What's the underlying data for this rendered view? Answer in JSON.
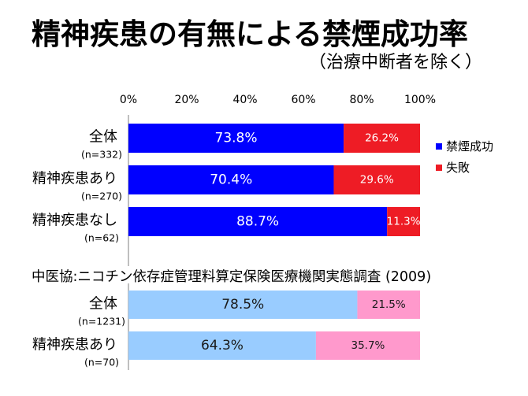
{
  "header": {
    "title": "精神疾患の有無による禁煙成功率",
    "subtitle": "（治療中断者を除く）"
  },
  "chart_data": [
    {
      "type": "bar",
      "orientation": "horizontal",
      "stacked": true,
      "categories": [
        "全体",
        "精神疾患あり",
        "精神疾患なし"
      ],
      "category_notes": [
        "(n=332)",
        "(n=270)",
        "(n=62)"
      ],
      "series": [
        {
          "name": "禁煙成功",
          "values": [
            73.8,
            70.4,
            88.7
          ],
          "labels": [
            "73.8%",
            "70.4%",
            "88.7%"
          ],
          "color": "#0000ff",
          "label_color": "#ffffff"
        },
        {
          "name": "失敗",
          "values": [
            26.2,
            29.6,
            11.3
          ],
          "labels": [
            "26.2%",
            "29.6%",
            "11.3%"
          ],
          "color": "#ee1c25",
          "label_color": "#ffffff"
        }
      ],
      "xlim": [
        0,
        100
      ],
      "xticks": [
        0,
        20,
        40,
        60,
        80,
        100
      ],
      "xtick_labels": [
        "0%",
        "20%",
        "40%",
        "60%",
        "80%",
        "100%"
      ],
      "xtick_position": "top",
      "grid": false,
      "legend": "right"
    },
    {
      "type": "bar",
      "orientation": "horizontal",
      "stacked": true,
      "caption": "中医協:ニコチン依存症管理料算定保険医療機関実態調査 (2009)",
      "categories": [
        "全体",
        "精神疾患あり"
      ],
      "category_notes": [
        "(n=1231)",
        "(n=70)"
      ],
      "series": [
        {
          "values": [
            78.5,
            64.3
          ],
          "labels": [
            "78.5%",
            "64.3%"
          ],
          "color": "#99ccff",
          "label_color": "#1a1a1a"
        },
        {
          "values": [
            21.5,
            35.7
          ],
          "labels": [
            "21.5%",
            "35.7%"
          ],
          "color": "#ff99cc",
          "label_color": "#1a1a1a"
        }
      ],
      "xlim": [
        0,
        100
      ],
      "grid": false,
      "legend": "none"
    }
  ]
}
